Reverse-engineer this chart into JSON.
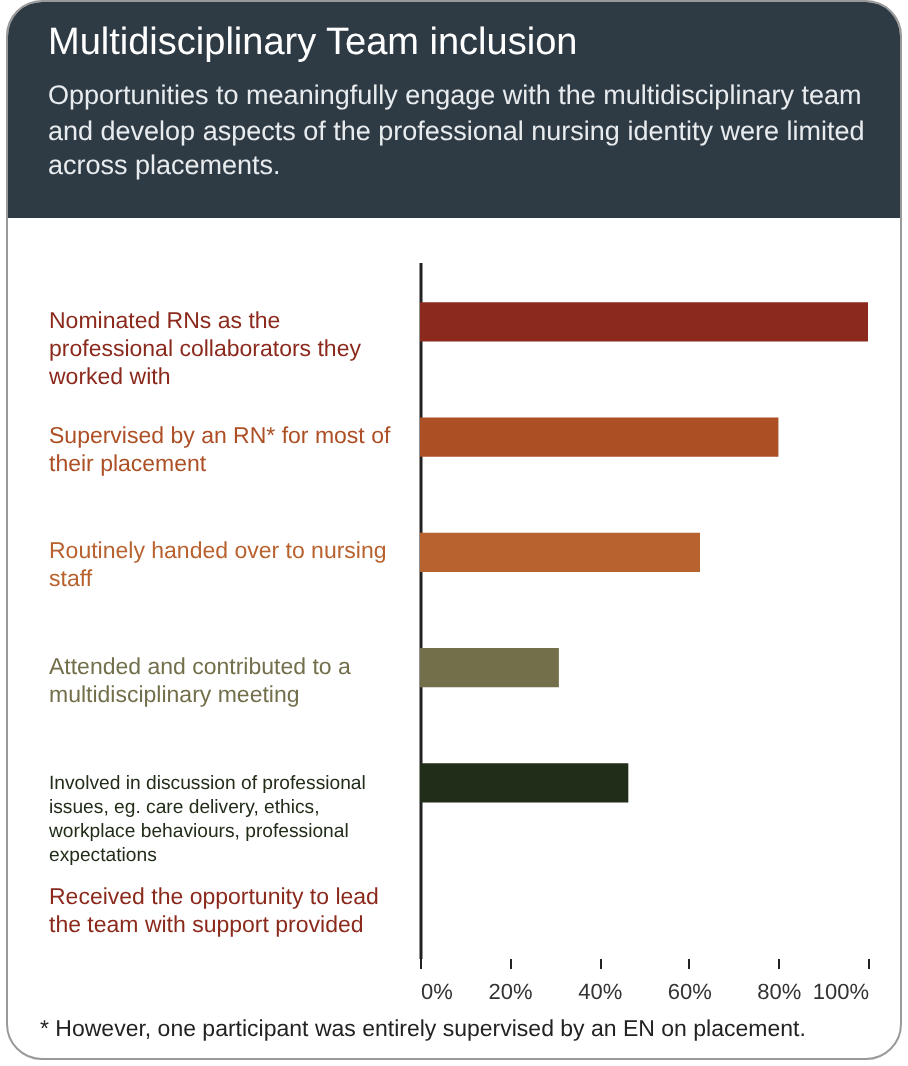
{
  "chart_data": {
    "type": "bar",
    "orientation": "horizontal",
    "title": "Multidisciplinary Team inclusion",
    "subtitle": "Opportunities to meaningfully engage with the multidisciplinary team and develop aspects of the professional nursing identity were limited across placements.",
    "categories": [
      "Nominated RNs as the professional collaborators they worked with",
      "Supervised by an RN* for most of their placement",
      "Routinely handed over to nursing staff",
      "Attended and contributed to a multidisciplinary meeting",
      "Involved in discussion of professional issues, eg. care delivery, ethics, workplace behaviours, professional expectations",
      "Received the opportunity to lead the team with support provided"
    ],
    "values": [
      100,
      80,
      62.5,
      31,
      46.5,
      0
    ],
    "colors": [
      "#8b2a1c",
      "#ad4f25",
      "#b8622f",
      "#736f4b",
      "#212c19",
      "#8b2a1c"
    ],
    "xlim": [
      0,
      100
    ],
    "xticks": [
      {
        "value": 0,
        "label": "0%"
      },
      {
        "value": 20,
        "label": "20%"
      },
      {
        "value": 40,
        "label": "40%"
      },
      {
        "value": 60,
        "label": "60%"
      },
      {
        "value": 80,
        "label": "80%"
      },
      {
        "value": 100,
        "label": "100%"
      }
    ],
    "grid": false,
    "annotations": [
      "* However, one participant was entirely supervised by an EN on placement."
    ]
  }
}
